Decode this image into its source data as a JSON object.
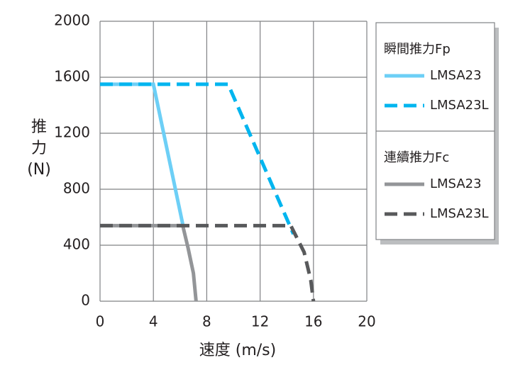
{
  "chart_data": {
    "type": "line",
    "xlabel": "速度 (m/s)",
    "ylabel": "推力(N)",
    "xlim": [
      0,
      20
    ],
    "xticks": [
      0,
      4,
      8,
      12,
      16,
      20
    ],
    "ylim": [
      0,
      2000
    ],
    "yticks": [
      0,
      400,
      800,
      1200,
      1600,
      2000
    ],
    "grid": true,
    "legend_titles": [
      "瞬間推力Fp",
      "連續推力Fc"
    ],
    "series": [
      {
        "name": "LMSA23",
        "color": "#6dcff6",
        "dashed": false,
        "x": [
          0,
          4,
          6.2
        ],
        "values": [
          1550,
          1550,
          550
        ]
      },
      {
        "name": "LMSA23L",
        "color": "#00b5ef",
        "dashed": true,
        "x": [
          0,
          9.6,
          14.5
        ],
        "values": [
          1550,
          1550,
          480
        ]
      },
      {
        "name": "LMSA23",
        "color": "#939598",
        "dashed": false,
        "x": [
          0,
          6.2,
          6.6,
          7.0,
          7.2
        ],
        "values": [
          540,
          540,
          380,
          200,
          0
        ]
      },
      {
        "name": "LMSA23L",
        "color": "#58595b",
        "dashed": true,
        "x": [
          0,
          14.3,
          15.3,
          15.8,
          16.0
        ],
        "values": [
          540,
          540,
          350,
          150,
          0
        ]
      }
    ]
  }
}
